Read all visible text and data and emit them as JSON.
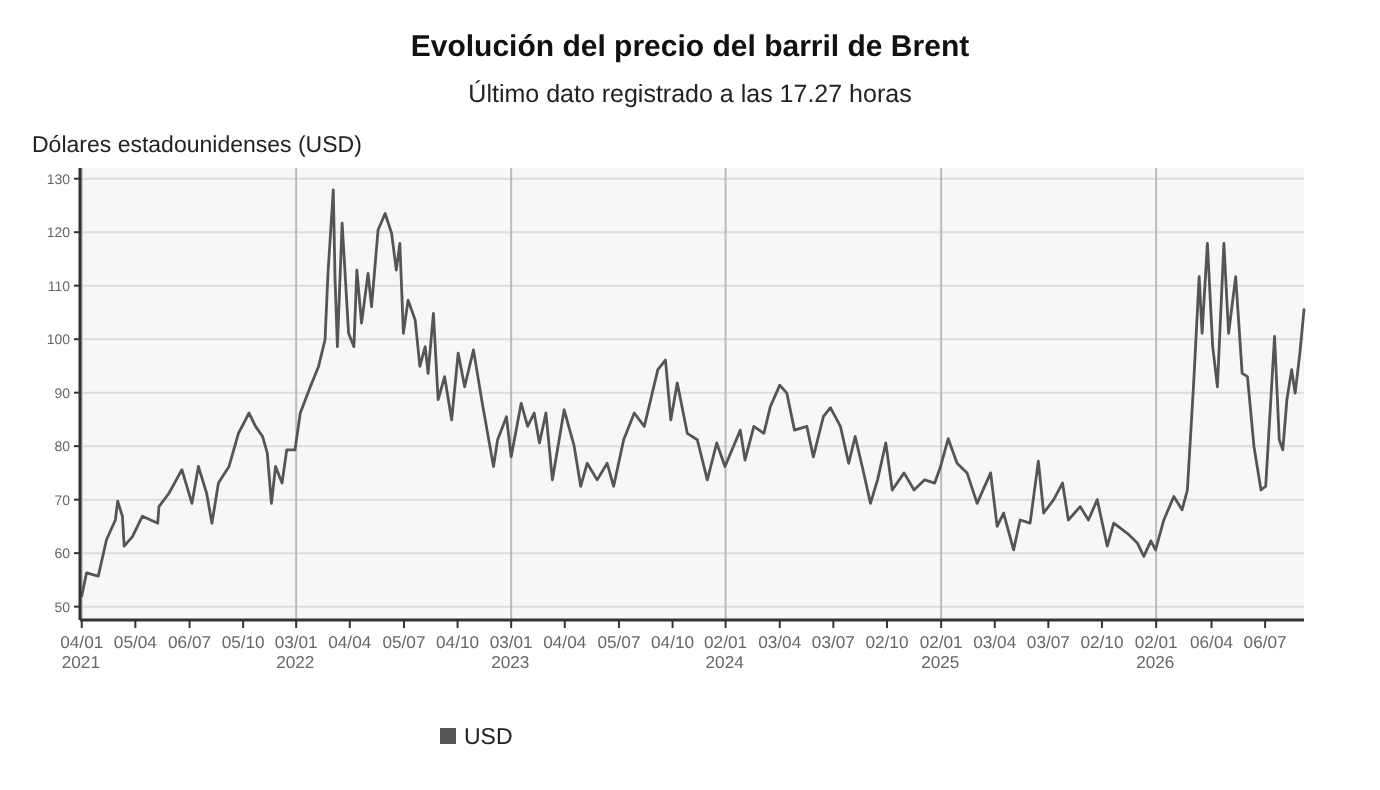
{
  "chart_data": {
    "type": "line",
    "title": "Evolución del precio del barril de Brent",
    "subtitle": "Último dato registrado a las 17.27 horas",
    "ylabel": "Dólares estadounidenses (USD)",
    "xlim": [
      "2021-01-01",
      "2026-09-10"
    ],
    "ylim": [
      47.5,
      132
    ],
    "yticks": [
      50,
      60,
      70,
      80,
      90,
      100,
      110,
      120,
      130
    ],
    "xticks": [
      {
        "value": "2021-01-04",
        "label": "04/01\n2021"
      },
      {
        "value": "2021-04-05",
        "label": "05/04"
      },
      {
        "value": "2021-07-06",
        "label": "06/07"
      },
      {
        "value": "2021-10-05",
        "label": "05/10"
      },
      {
        "value": "2022-01-03",
        "label": "03/01\n2022"
      },
      {
        "value": "2022-04-04",
        "label": "04/04"
      },
      {
        "value": "2022-07-05",
        "label": "05/07"
      },
      {
        "value": "2022-10-04",
        "label": "04/10"
      },
      {
        "value": "2023-01-03",
        "label": "03/01\n2023"
      },
      {
        "value": "2023-04-04",
        "label": "04/04"
      },
      {
        "value": "2023-07-05",
        "label": "05/07"
      },
      {
        "value": "2023-10-04",
        "label": "04/10"
      },
      {
        "value": "2024-01-02",
        "label": "02/01\n2024"
      },
      {
        "value": "2024-04-03",
        "label": "03/04"
      },
      {
        "value": "2024-07-03",
        "label": "03/07"
      },
      {
        "value": "2024-10-02",
        "label": "02/10"
      },
      {
        "value": "2025-01-02",
        "label": "02/01\n2025"
      },
      {
        "value": "2025-04-03",
        "label": "03/04"
      },
      {
        "value": "2025-07-03",
        "label": "03/07"
      },
      {
        "value": "2025-10-02",
        "label": "02/10"
      },
      {
        "value": "2026-01-02",
        "label": "02/01\n2026"
      },
      {
        "value": "2026-04-06",
        "label": "06/04"
      },
      {
        "value": "2026-07-06",
        "label": "06/07"
      }
    ],
    "grid": true,
    "legend": "bottom",
    "marker": "none",
    "line_style": "solid",
    "series": [
      {
        "name": "USD",
        "color": "#555555",
        "x": [
          "2021-01-04",
          "2021-01-12",
          "2021-02-01",
          "2021-02-15",
          "2021-03-02",
          "2021-03-06",
          "2021-03-14",
          "2021-03-17",
          "2021-03-31",
          "2021-04-17",
          "2021-05-13",
          "2021-05-15",
          "2021-06-01",
          "2021-06-23",
          "2021-07-10",
          "2021-07-21",
          "2021-08-04",
          "2021-08-13",
          "2021-08-24",
          "2021-09-11",
          "2021-09-27",
          "2021-10-15",
          "2021-10-26",
          "2021-11-07",
          "2021-11-15",
          "2021-11-22",
          "2021-11-29",
          "2021-12-10",
          "2021-12-18",
          "2022-01-01",
          "2022-01-10",
          "2022-01-27",
          "2022-02-10",
          "2022-02-21",
          "2022-02-26",
          "2022-03-07",
          "2022-03-10",
          "2022-03-14",
          "2022-03-22",
          "2022-04-02",
          "2022-04-11",
          "2022-04-16",
          "2022-04-24",
          "2022-05-05",
          "2022-05-11",
          "2022-05-22",
          "2022-06-03",
          "2022-06-14",
          "2022-06-22",
          "2022-06-28",
          "2022-07-04",
          "2022-07-12",
          "2022-07-24",
          "2022-08-01",
          "2022-08-10",
          "2022-08-15",
          "2022-08-24",
          "2022-09-01",
          "2022-09-12",
          "2022-09-24",
          "2022-10-05",
          "2022-10-16",
          "2022-10-31",
          "2022-11-15",
          "2022-12-04",
          "2022-12-11",
          "2022-12-26",
          "2023-01-03",
          "2023-01-20",
          "2023-01-31",
          "2023-02-11",
          "2023-02-20",
          "2023-03-03",
          "2023-03-14",
          "2023-04-03",
          "2023-04-20",
          "2023-05-01",
          "2023-05-12",
          "2023-05-29",
          "2023-06-15",
          "2023-06-26",
          "2023-07-13",
          "2023-07-31",
          "2023-08-17",
          "2023-09-09",
          "2023-09-22",
          "2023-10-01",
          "2023-10-12",
          "2023-10-29",
          "2023-11-15",
          "2023-12-02",
          "2023-12-18",
          "2024-01-01",
          "2024-01-27",
          "2024-02-04",
          "2024-02-19",
          "2024-03-07",
          "2024-03-18",
          "2024-04-03",
          "2024-04-15",
          "2024-04-28",
          "2024-05-19",
          "2024-05-30",
          "2024-06-16",
          "2024-06-28",
          "2024-07-15",
          "2024-07-29",
          "2024-08-09",
          "2024-08-21",
          "2024-09-04",
          "2024-09-16",
          "2024-09-30",
          "2024-10-11",
          "2024-10-31",
          "2024-11-17",
          "2024-12-05",
          "2024-12-22",
          "2025-01-01",
          "2025-01-14",
          "2025-01-29",
          "2025-02-15",
          "2025-03-04",
          "2025-03-27",
          "2025-04-07",
          "2025-04-18",
          "2025-05-05",
          "2025-05-16",
          "2025-06-02",
          "2025-06-16",
          "2025-06-25",
          "2025-07-12",
          "2025-07-27",
          "2025-08-06",
          "2025-08-26",
          "2025-09-09",
          "2025-09-24",
          "2025-10-11",
          "2025-10-22",
          "2025-11-14",
          "2025-12-01",
          "2025-12-12",
          "2025-12-24",
          "2026-01-01",
          "2026-01-15",
          "2026-02-01",
          "2026-02-15",
          "2026-02-24",
          "2026-03-07",
          "2026-03-16",
          "2026-03-21",
          "2026-03-30",
          "2026-04-08",
          "2026-04-16",
          "2026-04-27",
          "2026-05-05",
          "2026-05-17",
          "2026-05-28",
          "2026-06-06",
          "2026-06-17",
          "2026-06-29",
          "2026-07-07",
          "2026-07-22",
          "2026-07-30",
          "2026-08-05",
          "2026-08-12",
          "2026-08-20",
          "2026-08-26",
          "2026-09-03",
          "2026-09-10"
        ],
        "values": [
          52,
          56.3,
          55.7,
          62.5,
          66.2,
          69.7,
          66.9,
          61.3,
          63.1,
          66.9,
          65.6,
          68.7,
          71.2,
          75.6,
          69.3,
          76.2,
          71.2,
          65.6,
          73.1,
          76.2,
          82.4,
          86.2,
          83.7,
          81.8,
          78.7,
          69.3,
          76.2,
          73.1,
          79.3,
          79.3,
          86.2,
          91.1,
          94.9,
          99.9,
          112.3,
          127.9,
          111.1,
          98.6,
          121.7,
          101.1,
          98.6,
          112.9,
          103,
          112.3,
          106.1,
          120.4,
          123.5,
          119.8,
          112.9,
          117.9,
          101.1,
          107.3,
          103.6,
          94.9,
          98.6,
          93.6,
          104.8,
          88.7,
          93,
          84.9,
          97.4,
          91.1,
          98,
          88,
          76.2,
          81.2,
          85.5,
          78,
          88,
          83.7,
          86.2,
          80.6,
          86.2,
          73.7,
          86.8,
          80,
          72.5,
          76.8,
          73.7,
          76.8,
          72.5,
          81.2,
          86.2,
          83.7,
          94.3,
          96.1,
          84.9,
          91.8,
          82.4,
          81.2,
          73.7,
          80.6,
          76.2,
          83,
          77.4,
          83.7,
          82.4,
          87.4,
          91.4,
          89.9,
          83,
          83.7,
          78,
          85.5,
          87.2,
          83.7,
          76.8,
          81.8,
          76.2,
          69.3,
          73.7,
          80.6,
          71.8,
          75,
          71.8,
          73.7,
          73.1,
          76.2,
          81.4,
          76.8,
          75,
          69.3,
          75,
          65,
          67.5,
          60.6,
          66.2,
          65.6,
          77.2,
          67.5,
          70,
          73.1,
          66.2,
          68.7,
          66.2,
          70,
          61.3,
          65.6,
          63.7,
          61.9,
          59.4,
          62.3,
          60.6,
          66.2,
          70.6,
          68.1,
          71.8,
          92.4,
          111.7,
          101.1,
          117.9,
          98.6,
          91.1,
          117.9,
          101.1,
          111.7,
          93.6,
          93,
          80,
          71.8,
          72.5,
          100.5,
          81.2,
          79.3,
          88.7,
          94.3,
          89.9,
          97.4,
          105.5
        ]
      }
    ]
  }
}
